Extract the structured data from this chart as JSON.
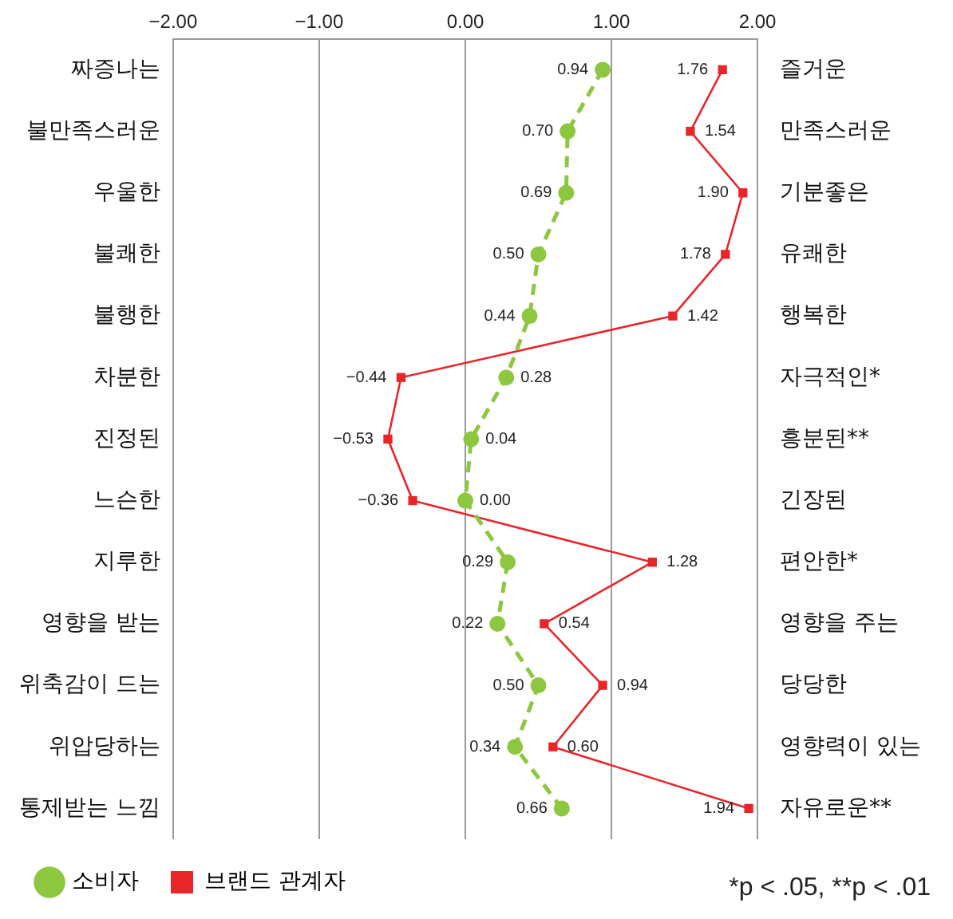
{
  "chart_data": {
    "type": "line",
    "orientation": "horizontal",
    "categories": [
      "짜증나는",
      "불만족스러운",
      "우울한",
      "불쾌한",
      "불행한",
      "차분한",
      "진정된",
      "느슨한",
      "지루한",
      "영향을 받는",
      "위축감이 드는",
      "위압당하는",
      "통제받는 느낌"
    ],
    "y2_categories": [
      "즐거운",
      "만족스러운",
      "기분좋은",
      "유쾌한",
      "행복한",
      "자극적인*",
      "흥분된**",
      "긴장된",
      "편안한*",
      "영향을 주는",
      "당당한",
      "영향력이 있는",
      "자유로운**"
    ],
    "series": [
      {
        "name": "소비자",
        "color": "#8dc63f",
        "marker": "circle",
        "line_style": "dashed",
        "values": [
          0.94,
          0.7,
          0.69,
          0.5,
          0.44,
          0.28,
          0.04,
          0.0,
          0.29,
          0.22,
          0.5,
          0.34,
          0.66
        ],
        "value_labels": [
          "0.94",
          "0.70",
          "0.69",
          "0.50",
          "0.44",
          "0.28",
          "0.04",
          "0.00",
          "0.29",
          "0.22",
          "0.50",
          "0.34",
          "0.66"
        ]
      },
      {
        "name": "브랜드 관계자",
        "color": "#e8262a",
        "marker": "square",
        "line_style": "solid",
        "values": [
          1.76,
          1.54,
          1.9,
          1.78,
          1.42,
          -0.44,
          -0.53,
          -0.36,
          1.28,
          0.54,
          0.94,
          0.6,
          1.94
        ],
        "value_labels": [
          "1.76",
          "1.54",
          "1.90",
          "1.78",
          "1.42",
          "−0.44",
          "−0.53",
          "−0.36",
          "1.28",
          "0.54",
          "0.94",
          "0.60",
          "1.94"
        ]
      }
    ],
    "xlim": [
      -2,
      2
    ],
    "xticks": [
      {
        "value": -2,
        "label": "−2.00"
      },
      {
        "value": -1,
        "label": "−1.00"
      },
      {
        "value": 0,
        "label": "0.00"
      },
      {
        "value": 1,
        "label": "1.00"
      },
      {
        "value": 2,
        "label": "2.00"
      }
    ],
    "grid": "x",
    "legend": "bottom",
    "annotations": [
      "*p < .05, **p < .01"
    ]
  }
}
